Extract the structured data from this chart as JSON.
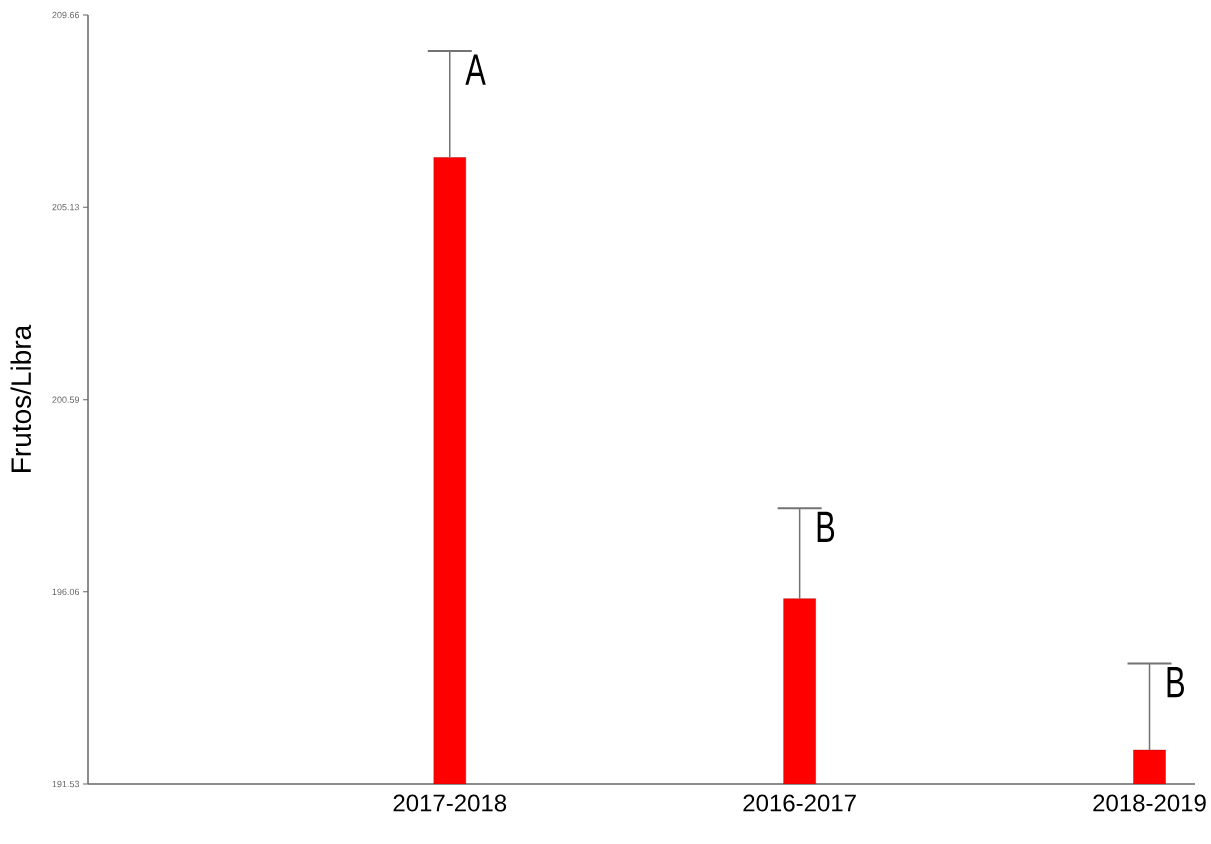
{
  "chart_data": {
    "type": "bar",
    "ylabel": "Frutos/Libra",
    "categories": [
      "2017-2018",
      "2016-2017",
      "2018-2019"
    ],
    "values": [
      206.3,
      195.9,
      192.33
    ],
    "errors": [
      [
        206.3,
        208.81
      ],
      [
        195.9,
        198.03
      ],
      [
        192.33,
        194.37
      ]
    ],
    "color": "#ff0000",
    "ylim": [
      191.53,
      209.66
    ],
    "yticks": [
      191.53,
      196.06,
      200.59,
      205.13,
      209.66
    ],
    "grid": false,
    "legend": false,
    "annotations": [
      "A",
      "B",
      "B"
    ]
  }
}
